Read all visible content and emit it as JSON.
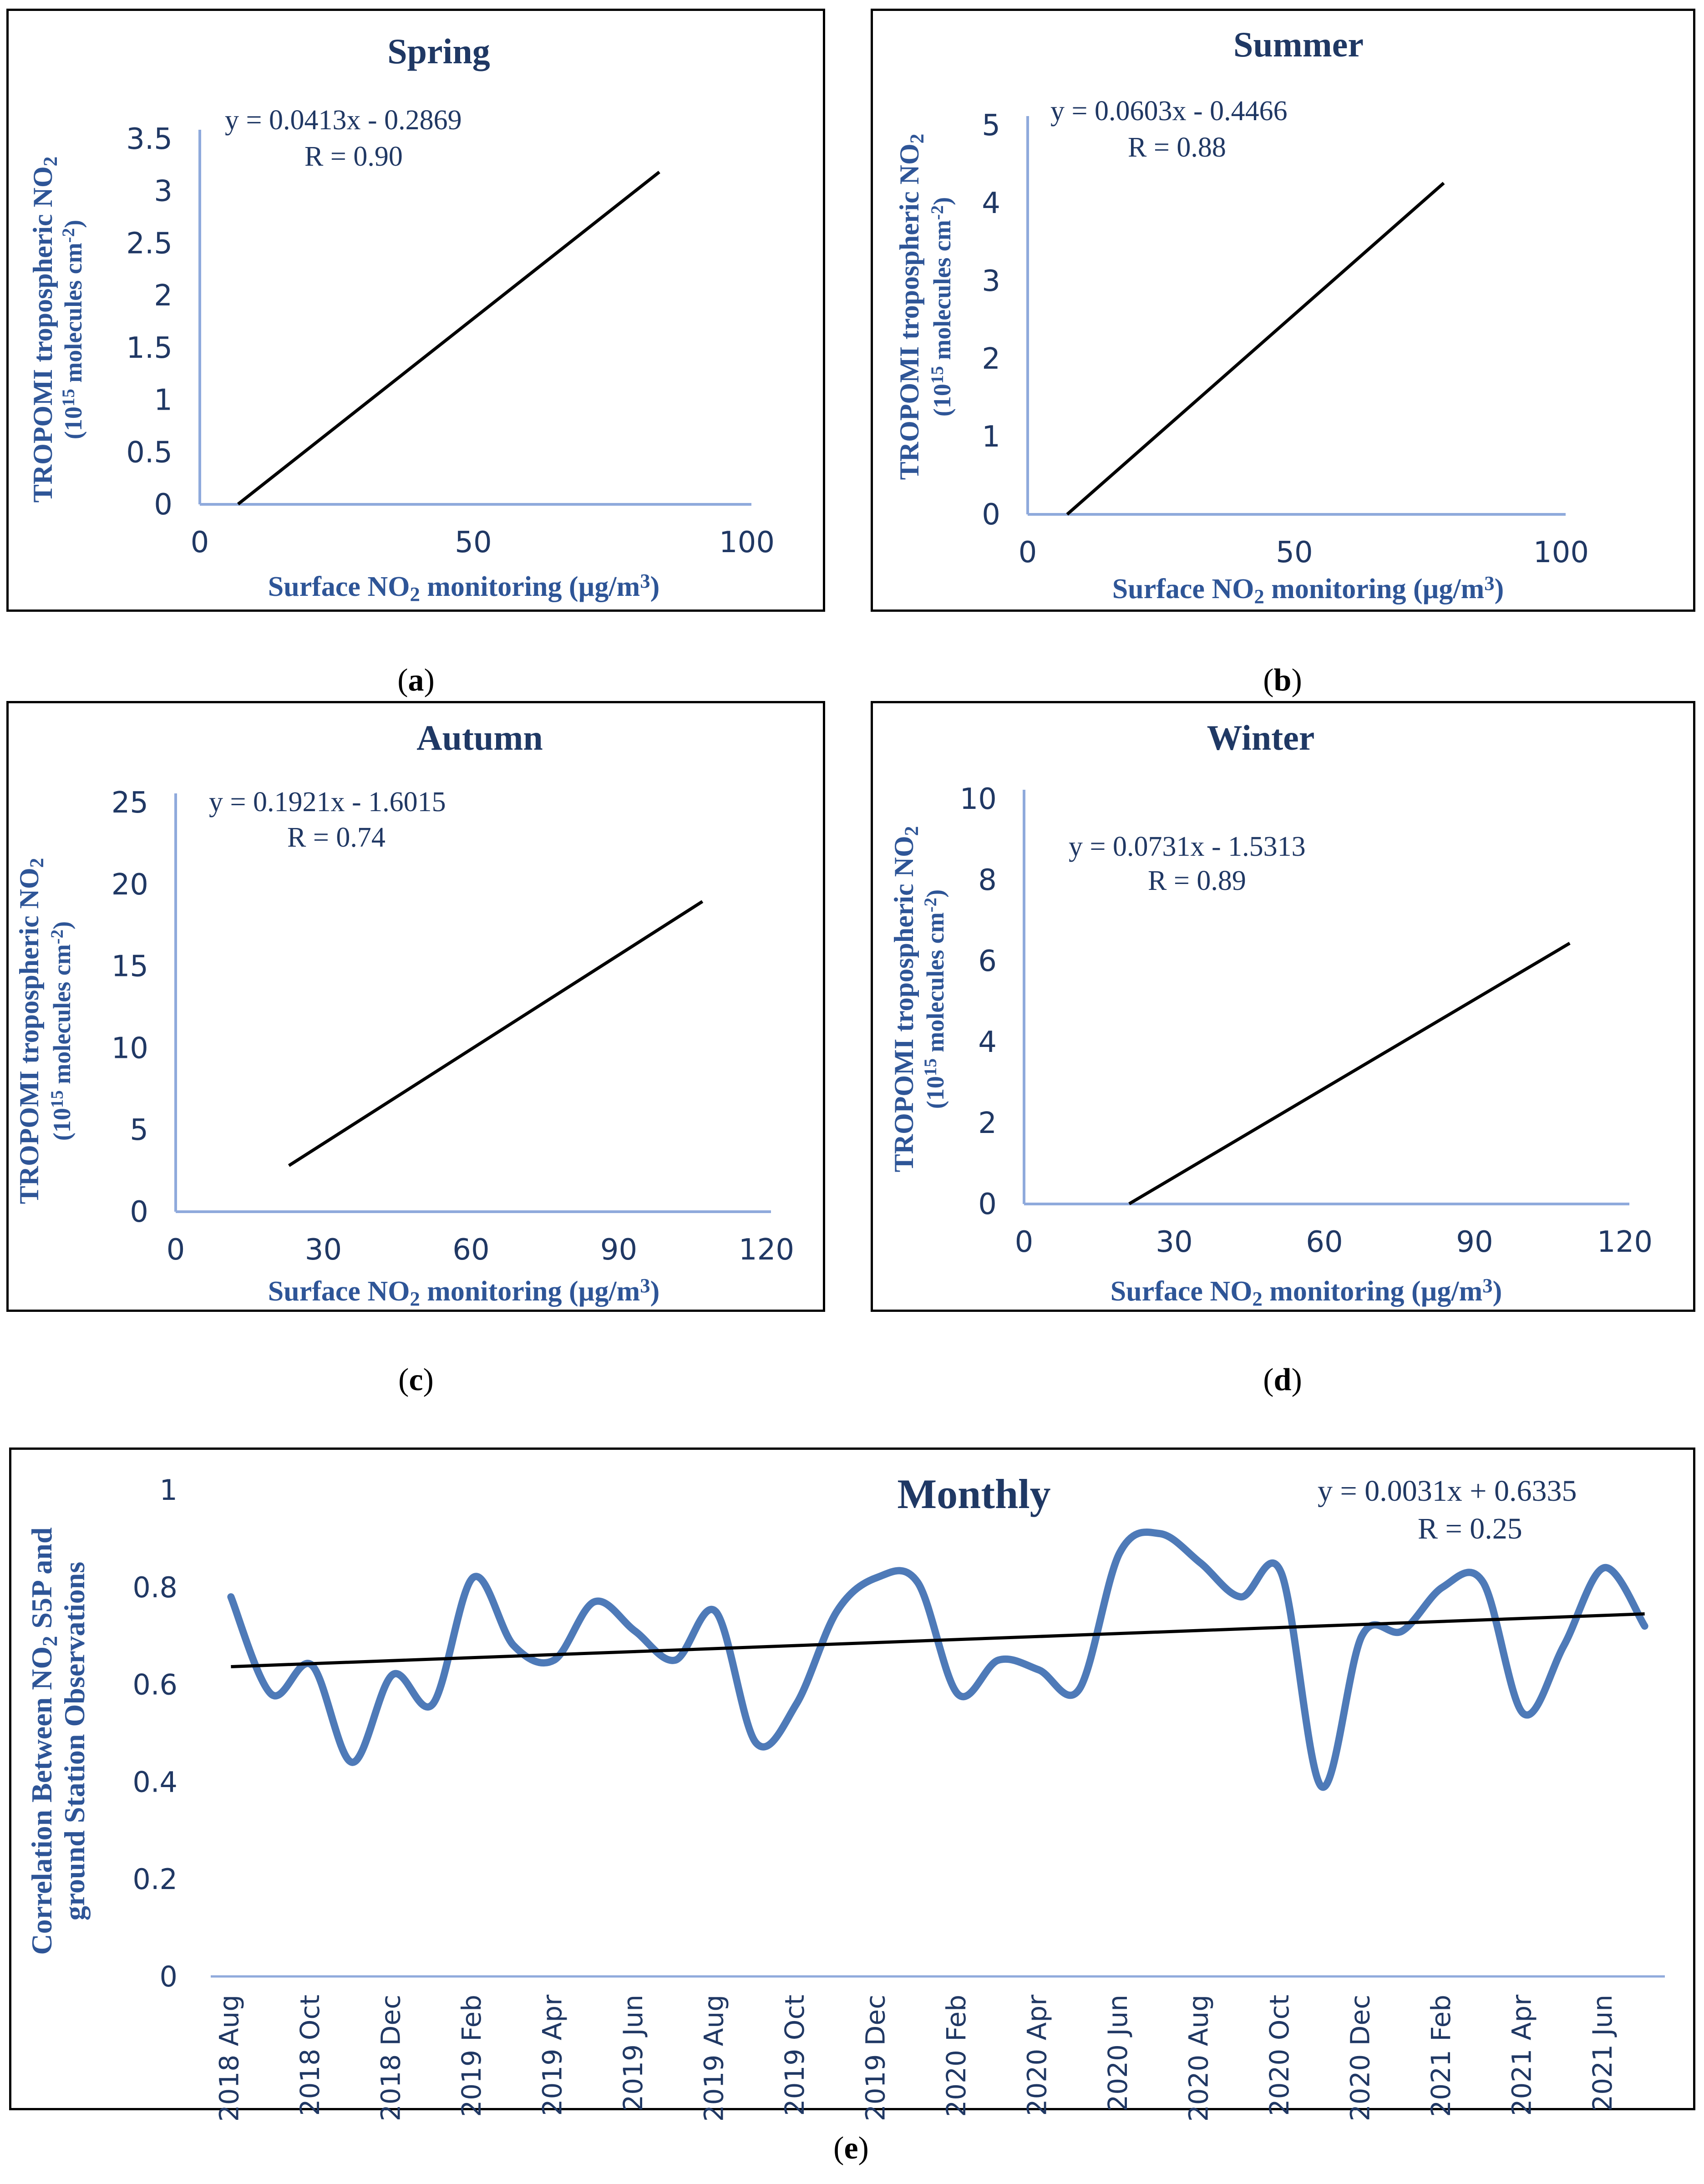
{
  "colors": {
    "axis": "#8FAADC",
    "line": "#000000",
    "series": "#4E7AB8",
    "title": "#1F3864",
    "label": "#2E5597"
  },
  "captions": {
    "a": "a",
    "b": "b",
    "c": "c",
    "d": "d",
    "e": "e"
  },
  "chart_data": [
    {
      "id": "a",
      "type": "line",
      "title": "Spring",
      "xlabel": "Surface NO2 monitoring (µg/m3)",
      "ylabel_line1": "TROPOMI tropospheric NO2",
      "ylabel_line2": "(1015 molecules cm-2)",
      "xlim": [
        0,
        100
      ],
      "ylim": [
        0,
        3.5
      ],
      "xticks": [
        "0",
        "50",
        "100"
      ],
      "yticks": [
        "0",
        "0.5",
        "1",
        "1.5",
        "2",
        "2.5",
        "3",
        "3.5"
      ],
      "equation": "y = 0.0413x - 0.2869",
      "r": "R = 0.90",
      "trend": {
        "slope": 0.0413,
        "intercept": -0.2869,
        "x": [
          7,
          84
        ]
      }
    },
    {
      "id": "b",
      "type": "line",
      "title": "Summer",
      "xlabel": "Surface NO2 monitoring (µg/m3)",
      "ylabel_line1": "TROPOMI tropospheric NO2",
      "ylabel_line2": "(1015 molecules cm-2)",
      "xlim": [
        0,
        100
      ],
      "ylim": [
        0,
        5
      ],
      "xticks": [
        "0",
        "50",
        "100"
      ],
      "yticks": [
        "0",
        "1",
        "2",
        "3",
        "4",
        "5"
      ],
      "equation": "y = 0.0603x - 0.4466",
      "r": "R = 0.88",
      "trend": {
        "slope": 0.0603,
        "intercept": -0.4466,
        "x": [
          7.4,
          78
        ]
      }
    },
    {
      "id": "c",
      "type": "line",
      "title": "Autumn",
      "xlabel": "Surface NO2 monitoring (µg/m3)",
      "ylabel_line1": "TROPOMI tropospheric NO2",
      "ylabel_line2": "(1015 molecules cm-2)",
      "xlim": [
        0,
        120
      ],
      "ylim": [
        0,
        25
      ],
      "xticks": [
        "0",
        "30",
        "60",
        "90",
        "120"
      ],
      "yticks": [
        "0",
        "5",
        "10",
        "15",
        "20",
        "25"
      ],
      "equation": "y = 0.1921x - 1.6015",
      "r": "R = 0.74",
      "trend": {
        "slope": 0.1921,
        "intercept": -1.6015,
        "x": [
          23,
          107
        ]
      }
    },
    {
      "id": "d",
      "type": "line",
      "title": "Winter",
      "xlabel": "Surface NO2 monitoring (µg/m3)",
      "ylabel_line1": "TROPOMI tropospheric NO2",
      "ylabel_line2": "(1015 molecules cm-2)",
      "xlim": [
        0,
        120
      ],
      "ylim": [
        0,
        10
      ],
      "xticks": [
        "0",
        "30",
        "60",
        "90",
        "120"
      ],
      "yticks": [
        "0",
        "2",
        "4",
        "6",
        "8",
        "10"
      ],
      "equation": "y = 0.0731x - 1.5313",
      "r": "R = 0.89",
      "trend": {
        "slope": 0.0731,
        "intercept": -1.5313,
        "x": [
          21,
          109
        ]
      }
    },
    {
      "id": "e",
      "type": "line",
      "title": "Monthly",
      "ylabel_line1": "Correlation Between NO2 S5P and",
      "ylabel_line2": "ground Station Observations",
      "ylim": [
        0,
        1
      ],
      "yticks": [
        "0",
        "0.2",
        "0.4",
        "0.6",
        "0.8",
        "1"
      ],
      "xticks": [
        "2018 Aug",
        "2018 Oct",
        "2018 Dec",
        "2019 Feb",
        "2019 Apr",
        "2019 Jun",
        "2019 Aug",
        "2019 Oct",
        "2019 Dec",
        "2020 Feb",
        "2020 Apr",
        "2020 Jun",
        "2020 Aug",
        "2020 Oct",
        "2020 Dec",
        "2021 Feb",
        "2021 Apr",
        "2021 Jun"
      ],
      "equation": "y = 0.0031x + 0.6335",
      "r": "R = 0.25",
      "trend": {
        "slope": 0.0031,
        "intercept": 0.6335
      },
      "series": [
        {
          "name": "Monthly correlation",
          "months": [
            "2018 Aug",
            "2018 Sep",
            "2018 Oct",
            "2018 Nov",
            "2018 Dec",
            "2019 Jan",
            "2019 Feb",
            "2019 Mar",
            "2019 Apr",
            "2019 May",
            "2019 Jun",
            "2019 Jul",
            "2019 Aug",
            "2019 Sep",
            "2019 Oct",
            "2019 Nov",
            "2019 Dec",
            "2020 Jan",
            "2020 Feb",
            "2020 Mar",
            "2020 Apr",
            "2020 May",
            "2020 Jun",
            "2020 Jul",
            "2020 Aug",
            "2020 Sep",
            "2020 Oct",
            "2020 Nov",
            "2020 Dec",
            "2021 Jan",
            "2021 Feb",
            "2021 Mar",
            "2021 Apr",
            "2021 May",
            "2021 Jun",
            "2021 Jul"
          ],
          "values": [
            0.78,
            0.58,
            0.64,
            0.44,
            0.62,
            0.56,
            0.82,
            0.68,
            0.65,
            0.77,
            0.71,
            0.65,
            0.75,
            0.48,
            0.56,
            0.75,
            0.82,
            0.81,
            0.58,
            0.65,
            0.63,
            0.59,
            0.87,
            0.91,
            0.85,
            0.78,
            0.83,
            0.39,
            0.7,
            0.71,
            0.8,
            0.81,
            0.54,
            0.68,
            0.84,
            0.72
          ]
        }
      ]
    }
  ]
}
